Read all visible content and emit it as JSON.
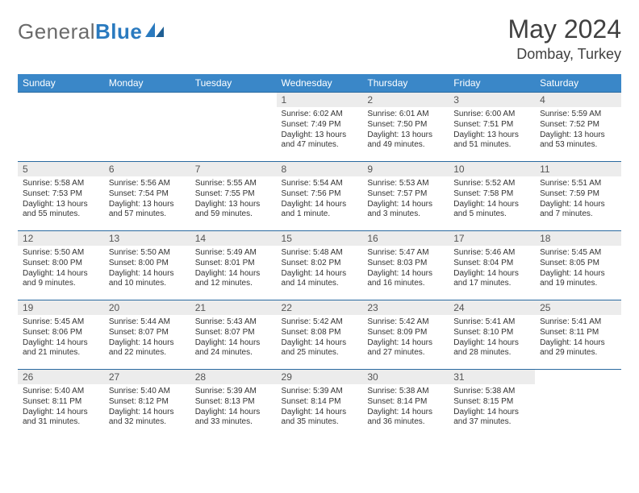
{
  "logo": {
    "general": "General",
    "blue": "Blue"
  },
  "title": "May 2024",
  "location": "Dombay, Turkey",
  "colors": {
    "header_bg": "#3a87c8",
    "header_fg": "#ffffff",
    "daynum_bg": "#ececec",
    "cell_border": "#2a6aa0",
    "logo_accent": "#2a7abf",
    "text": "#333333"
  },
  "weekdays": [
    "Sunday",
    "Monday",
    "Tuesday",
    "Wednesday",
    "Thursday",
    "Friday",
    "Saturday"
  ],
  "weeks": [
    [
      null,
      null,
      null,
      {
        "n": "1",
        "sr": "Sunrise: 6:02 AM",
        "ss": "Sunset: 7:49 PM",
        "d1": "Daylight: 13 hours",
        "d2": "and 47 minutes."
      },
      {
        "n": "2",
        "sr": "Sunrise: 6:01 AM",
        "ss": "Sunset: 7:50 PM",
        "d1": "Daylight: 13 hours",
        "d2": "and 49 minutes."
      },
      {
        "n": "3",
        "sr": "Sunrise: 6:00 AM",
        "ss": "Sunset: 7:51 PM",
        "d1": "Daylight: 13 hours",
        "d2": "and 51 minutes."
      },
      {
        "n": "4",
        "sr": "Sunrise: 5:59 AM",
        "ss": "Sunset: 7:52 PM",
        "d1": "Daylight: 13 hours",
        "d2": "and 53 minutes."
      }
    ],
    [
      {
        "n": "5",
        "sr": "Sunrise: 5:58 AM",
        "ss": "Sunset: 7:53 PM",
        "d1": "Daylight: 13 hours",
        "d2": "and 55 minutes."
      },
      {
        "n": "6",
        "sr": "Sunrise: 5:56 AM",
        "ss": "Sunset: 7:54 PM",
        "d1": "Daylight: 13 hours",
        "d2": "and 57 minutes."
      },
      {
        "n": "7",
        "sr": "Sunrise: 5:55 AM",
        "ss": "Sunset: 7:55 PM",
        "d1": "Daylight: 13 hours",
        "d2": "and 59 minutes."
      },
      {
        "n": "8",
        "sr": "Sunrise: 5:54 AM",
        "ss": "Sunset: 7:56 PM",
        "d1": "Daylight: 14 hours",
        "d2": "and 1 minute."
      },
      {
        "n": "9",
        "sr": "Sunrise: 5:53 AM",
        "ss": "Sunset: 7:57 PM",
        "d1": "Daylight: 14 hours",
        "d2": "and 3 minutes."
      },
      {
        "n": "10",
        "sr": "Sunrise: 5:52 AM",
        "ss": "Sunset: 7:58 PM",
        "d1": "Daylight: 14 hours",
        "d2": "and 5 minutes."
      },
      {
        "n": "11",
        "sr": "Sunrise: 5:51 AM",
        "ss": "Sunset: 7:59 PM",
        "d1": "Daylight: 14 hours",
        "d2": "and 7 minutes."
      }
    ],
    [
      {
        "n": "12",
        "sr": "Sunrise: 5:50 AM",
        "ss": "Sunset: 8:00 PM",
        "d1": "Daylight: 14 hours",
        "d2": "and 9 minutes."
      },
      {
        "n": "13",
        "sr": "Sunrise: 5:50 AM",
        "ss": "Sunset: 8:00 PM",
        "d1": "Daylight: 14 hours",
        "d2": "and 10 minutes."
      },
      {
        "n": "14",
        "sr": "Sunrise: 5:49 AM",
        "ss": "Sunset: 8:01 PM",
        "d1": "Daylight: 14 hours",
        "d2": "and 12 minutes."
      },
      {
        "n": "15",
        "sr": "Sunrise: 5:48 AM",
        "ss": "Sunset: 8:02 PM",
        "d1": "Daylight: 14 hours",
        "d2": "and 14 minutes."
      },
      {
        "n": "16",
        "sr": "Sunrise: 5:47 AM",
        "ss": "Sunset: 8:03 PM",
        "d1": "Daylight: 14 hours",
        "d2": "and 16 minutes."
      },
      {
        "n": "17",
        "sr": "Sunrise: 5:46 AM",
        "ss": "Sunset: 8:04 PM",
        "d1": "Daylight: 14 hours",
        "d2": "and 17 minutes."
      },
      {
        "n": "18",
        "sr": "Sunrise: 5:45 AM",
        "ss": "Sunset: 8:05 PM",
        "d1": "Daylight: 14 hours",
        "d2": "and 19 minutes."
      }
    ],
    [
      {
        "n": "19",
        "sr": "Sunrise: 5:45 AM",
        "ss": "Sunset: 8:06 PM",
        "d1": "Daylight: 14 hours",
        "d2": "and 21 minutes."
      },
      {
        "n": "20",
        "sr": "Sunrise: 5:44 AM",
        "ss": "Sunset: 8:07 PM",
        "d1": "Daylight: 14 hours",
        "d2": "and 22 minutes."
      },
      {
        "n": "21",
        "sr": "Sunrise: 5:43 AM",
        "ss": "Sunset: 8:07 PM",
        "d1": "Daylight: 14 hours",
        "d2": "and 24 minutes."
      },
      {
        "n": "22",
        "sr": "Sunrise: 5:42 AM",
        "ss": "Sunset: 8:08 PM",
        "d1": "Daylight: 14 hours",
        "d2": "and 25 minutes."
      },
      {
        "n": "23",
        "sr": "Sunrise: 5:42 AM",
        "ss": "Sunset: 8:09 PM",
        "d1": "Daylight: 14 hours",
        "d2": "and 27 minutes."
      },
      {
        "n": "24",
        "sr": "Sunrise: 5:41 AM",
        "ss": "Sunset: 8:10 PM",
        "d1": "Daylight: 14 hours",
        "d2": "and 28 minutes."
      },
      {
        "n": "25",
        "sr": "Sunrise: 5:41 AM",
        "ss": "Sunset: 8:11 PM",
        "d1": "Daylight: 14 hours",
        "d2": "and 29 minutes."
      }
    ],
    [
      {
        "n": "26",
        "sr": "Sunrise: 5:40 AM",
        "ss": "Sunset: 8:11 PM",
        "d1": "Daylight: 14 hours",
        "d2": "and 31 minutes."
      },
      {
        "n": "27",
        "sr": "Sunrise: 5:40 AM",
        "ss": "Sunset: 8:12 PM",
        "d1": "Daylight: 14 hours",
        "d2": "and 32 minutes."
      },
      {
        "n": "28",
        "sr": "Sunrise: 5:39 AM",
        "ss": "Sunset: 8:13 PM",
        "d1": "Daylight: 14 hours",
        "d2": "and 33 minutes."
      },
      {
        "n": "29",
        "sr": "Sunrise: 5:39 AM",
        "ss": "Sunset: 8:14 PM",
        "d1": "Daylight: 14 hours",
        "d2": "and 35 minutes."
      },
      {
        "n": "30",
        "sr": "Sunrise: 5:38 AM",
        "ss": "Sunset: 8:14 PM",
        "d1": "Daylight: 14 hours",
        "d2": "and 36 minutes."
      },
      {
        "n": "31",
        "sr": "Sunrise: 5:38 AM",
        "ss": "Sunset: 8:15 PM",
        "d1": "Daylight: 14 hours",
        "d2": "and 37 minutes."
      },
      null
    ]
  ]
}
